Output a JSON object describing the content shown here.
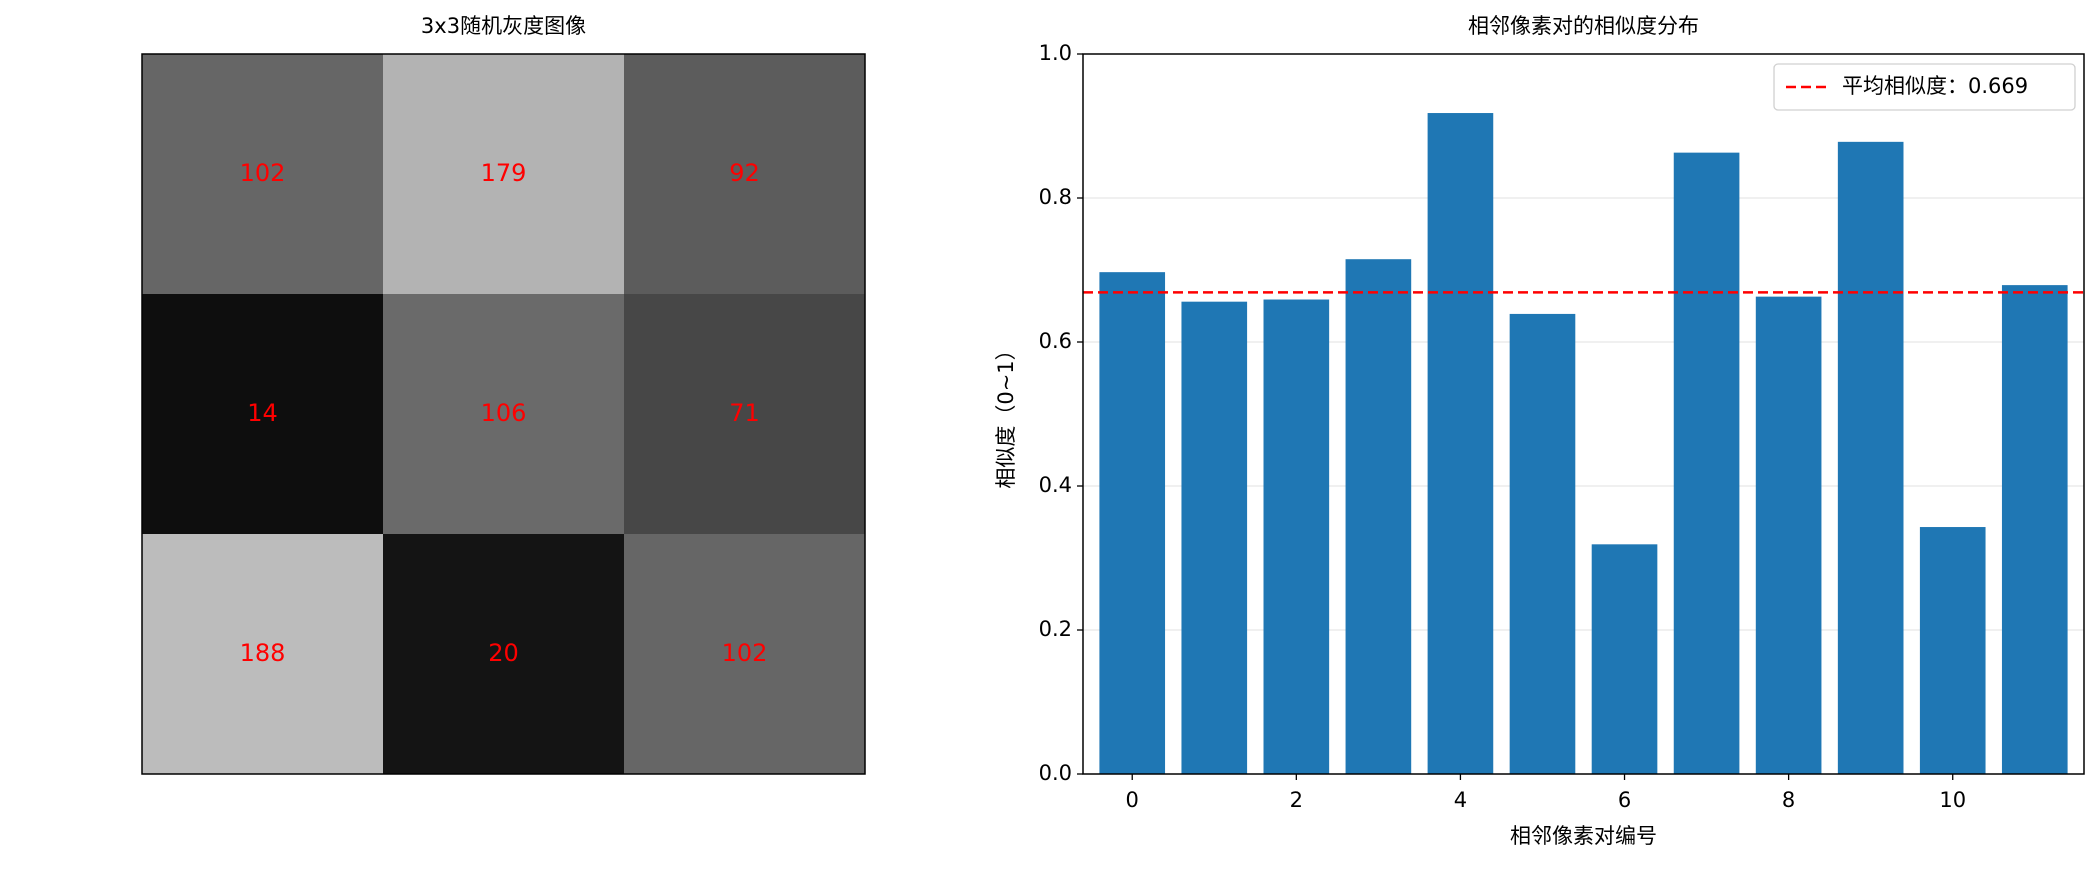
{
  "chart_data": [
    {
      "type": "heatmap",
      "title": "3x3随机灰度图像",
      "colormap": "gray",
      "clim": [
        0,
        255
      ],
      "label_color": "#ff0000",
      "values": [
        [
          102,
          179,
          92
        ],
        [
          14,
          106,
          71
        ],
        [
          188,
          20,
          102
        ]
      ]
    },
    {
      "type": "bar",
      "title": "相邻像素对的相似度分布",
      "xlabel": "相邻像素对编号",
      "ylabel": "相似度（0~1）",
      "color": "#1f77b4",
      "x": [
        0,
        1,
        2,
        3,
        4,
        5,
        6,
        7,
        8,
        9,
        10,
        11
      ],
      "values": [
        0.697,
        0.656,
        0.659,
        0.715,
        0.918,
        0.639,
        0.319,
        0.863,
        0.663,
        0.878,
        0.343,
        0.679
      ],
      "xlim": [
        -0.6,
        11.6
      ],
      "xticks": [
        0,
        2,
        4,
        6,
        8,
        10
      ],
      "ylim": [
        0,
        1
      ],
      "yticks": [
        {
          "value": 0,
          "label": "0.0"
        },
        0.2,
        0.4,
        0.6,
        0.8,
        {
          "value": 1,
          "label": "1.0"
        }
      ],
      "grid": "y",
      "legend": "upper right",
      "reference_line": {
        "value": 0.669,
        "label": "平均相似度：0.669",
        "color": "#ff0000",
        "style": "dashed"
      }
    }
  ]
}
